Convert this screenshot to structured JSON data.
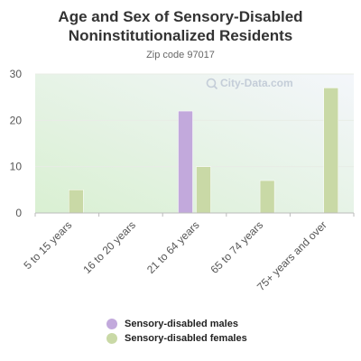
{
  "header": {
    "title_line1": "Age and Sex of Sensory-Disabled",
    "title_line2": "Noninstitutionalized Residents",
    "subtitle": "Zip code 97017",
    "watermark": "City-Data.com"
  },
  "colors": {
    "males": "#c2a9dc",
    "females": "#c9d9a6",
    "background_top": "#f4f6fb",
    "background_bottom": "#d9f0d2"
  },
  "chart_data": {
    "type": "bar",
    "title": "Age and Sex of Sensory-Disabled Noninstitutionalized Residents",
    "subtitle": "Zip code 97017",
    "categories": [
      "5 to 15 years",
      "16 to 20 years",
      "21 to 64 years",
      "65 to 74 years",
      "75+ years and over"
    ],
    "series": [
      {
        "name": "Sensory-disabled males",
        "values": [
          0,
          0,
          22,
          0,
          0
        ]
      },
      {
        "name": "Sensory-disabled females",
        "values": [
          5,
          0,
          10,
          7,
          27
        ]
      }
    ],
    "yticks": [
      0,
      10,
      20,
      30
    ],
    "ylim": [
      0,
      30
    ],
    "xlabel": "",
    "ylabel": "",
    "grid": true,
    "legend_position": "bottom"
  }
}
